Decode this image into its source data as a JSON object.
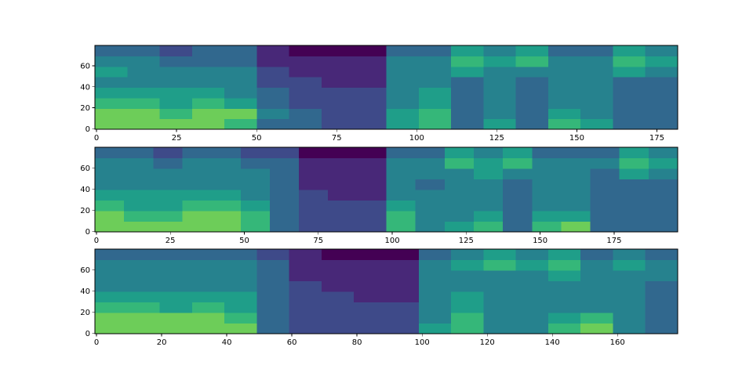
{
  "chart_data": [
    {
      "type": "heatmap",
      "colormap": "viridis",
      "clim": [
        0,
        9
      ],
      "xlim": [
        -0.5,
        181.5
      ],
      "ylim": [
        -0.5,
        79.5
      ],
      "xticks": [
        0,
        25,
        50,
        75,
        100,
        125,
        150,
        175
      ],
      "yticks": [
        0,
        20,
        40,
        60
      ],
      "z": [
        [
          7,
          7,
          7,
          7,
          6,
          3,
          3,
          2,
          2,
          5,
          6,
          3,
          5,
          3,
          6,
          5,
          3,
          3
        ],
        [
          7,
          7,
          6,
          7,
          7,
          4,
          3,
          2,
          2,
          5,
          6,
          3,
          4,
          3,
          5,
          4,
          3,
          3
        ],
        [
          6,
          6,
          5,
          6,
          5,
          3,
          2,
          2,
          2,
          4,
          5,
          3,
          4,
          3,
          4,
          4,
          3,
          3
        ],
        [
          5,
          5,
          5,
          5,
          4,
          3,
          2,
          2,
          2,
          4,
          5,
          3,
          4,
          3,
          4,
          4,
          3,
          3
        ],
        [
          4,
          4,
          4,
          4,
          4,
          2,
          2,
          1,
          1,
          4,
          4,
          3,
          4,
          3,
          4,
          4,
          3,
          3
        ],
        [
          5,
          4,
          4,
          4,
          4,
          2,
          1,
          1,
          1,
          4,
          4,
          5,
          4,
          4,
          4,
          4,
          5,
          4
        ],
        [
          4,
          4,
          3,
          3,
          3,
          1,
          1,
          1,
          1,
          4,
          4,
          6,
          5,
          6,
          4,
          4,
          6,
          5
        ],
        [
          3,
          3,
          2,
          3,
          3,
          1,
          0,
          0,
          0,
          3,
          3,
          5,
          4,
          5,
          3,
          3,
          5,
          4
        ]
      ]
    },
    {
      "type": "heatmap",
      "colormap": "viridis",
      "clim": [
        0,
        9
      ],
      "xlim": [
        -0.5,
        196.5
      ],
      "ylim": [
        -0.5,
        79.5
      ],
      "xticks": [
        0,
        25,
        50,
        75,
        100,
        125,
        150,
        175
      ],
      "yticks": [
        0,
        20,
        40,
        60
      ],
      "z": [
        [
          7,
          7,
          7,
          7,
          7,
          6,
          3,
          2,
          2,
          2,
          6,
          4,
          5,
          6,
          3,
          6,
          7,
          3,
          3,
          3
        ],
        [
          7,
          6,
          6,
          7,
          7,
          6,
          3,
          2,
          2,
          2,
          6,
          4,
          4,
          5,
          3,
          5,
          5,
          3,
          3,
          3
        ],
        [
          6,
          5,
          5,
          6,
          6,
          5,
          3,
          2,
          2,
          2,
          5,
          4,
          4,
          4,
          3,
          4,
          4,
          3,
          3,
          3
        ],
        [
          5,
          5,
          5,
          5,
          5,
          4,
          3,
          2,
          1,
          1,
          4,
          4,
          4,
          4,
          3,
          4,
          4,
          3,
          3,
          3
        ],
        [
          4,
          4,
          4,
          4,
          4,
          4,
          3,
          1,
          1,
          1,
          4,
          3,
          4,
          4,
          3,
          4,
          4,
          3,
          3,
          3
        ],
        [
          4,
          4,
          4,
          4,
          4,
          4,
          3,
          1,
          1,
          1,
          4,
          4,
          4,
          5,
          4,
          4,
          4,
          3,
          5,
          4
        ],
        [
          4,
          4,
          3,
          4,
          4,
          3,
          3,
          1,
          1,
          1,
          4,
          4,
          6,
          5,
          6,
          4,
          4,
          4,
          6,
          5
        ],
        [
          3,
          3,
          2,
          3,
          3,
          2,
          2,
          0,
          0,
          0,
          3,
          3,
          5,
          4,
          5,
          3,
          3,
          3,
          5,
          4
        ]
      ]
    },
    {
      "type": "heatmap",
      "colormap": "viridis",
      "clim": [
        0,
        9
      ],
      "xlim": [
        -0.5,
        178.5
      ],
      "ylim": [
        -0.5,
        79.5
      ],
      "xticks": [
        0,
        20,
        40,
        60,
        80,
        100,
        120,
        140,
        160
      ],
      "yticks": [
        0,
        20,
        40,
        60
      ],
      "z": [
        [
          7,
          7,
          7,
          7,
          7,
          3,
          2,
          2,
          2,
          2,
          5,
          6,
          4,
          4,
          6,
          7,
          4,
          3
        ],
        [
          7,
          7,
          7,
          7,
          6,
          3,
          2,
          2,
          2,
          2,
          4,
          6,
          4,
          4,
          5,
          6,
          4,
          3
        ],
        [
          6,
          6,
          5,
          6,
          5,
          3,
          2,
          2,
          2,
          2,
          4,
          5,
          4,
          4,
          4,
          4,
          4,
          3
        ],
        [
          5,
          5,
          5,
          5,
          5,
          3,
          2,
          2,
          1,
          1,
          4,
          5,
          4,
          4,
          4,
          4,
          4,
          3
        ],
        [
          4,
          4,
          4,
          4,
          4,
          3,
          2,
          1,
          1,
          1,
          4,
          4,
          4,
          4,
          4,
          4,
          4,
          3
        ],
        [
          4,
          4,
          4,
          4,
          4,
          3,
          1,
          1,
          1,
          1,
          4,
          4,
          4,
          4,
          5,
          4,
          4,
          4
        ],
        [
          4,
          4,
          4,
          4,
          4,
          3,
          1,
          1,
          1,
          1,
          4,
          5,
          6,
          5,
          6,
          4,
          5,
          4
        ],
        [
          3,
          3,
          3,
          3,
          3,
          2,
          1,
          0,
          0,
          0,
          3,
          4,
          5,
          4,
          5,
          3,
          4,
          3
        ]
      ]
    }
  ]
}
